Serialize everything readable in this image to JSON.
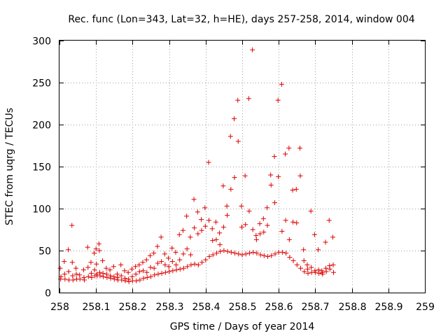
{
  "chart_data": {
    "type": "scatter",
    "title": "Rec. func (Lon=343, Lat=32, h=HE), days 257-258, 2014, window 004",
    "xlabel": "GPS time / Days of year 2014",
    "ylabel": "STEC from uqrg / TECUs",
    "xlim": [
      258,
      259
    ],
    "ylim": [
      0,
      300
    ],
    "x_ticks": [
      258,
      258.1,
      258.2,
      258.3,
      258.4,
      258.5,
      258.6,
      258.7,
      258.8,
      258.9,
      259
    ],
    "x_tick_labels": [
      "258",
      "258.1",
      "258.2",
      "258.3",
      "258.4",
      "258.5",
      "258.6",
      "258.7",
      "258.8",
      "258.9",
      "259"
    ],
    "y_ticks": [
      0,
      50,
      100,
      150,
      200,
      250,
      300
    ],
    "y_tick_labels": [
      "0",
      "50",
      "100",
      "150",
      "200",
      "250",
      "300"
    ],
    "grid": true,
    "marker": "plus",
    "color": "#dd0000",
    "series": [
      {
        "points": [
          [
            258.002,
            29
          ],
          [
            258.003,
            16
          ],
          [
            258.004,
            19
          ],
          [
            258.013,
            37
          ],
          [
            258.014,
            22
          ],
          [
            258.015,
            16
          ],
          [
            258.024,
            51
          ],
          [
            258.025,
            25
          ],
          [
            258.026,
            15
          ],
          [
            258.034,
            80
          ],
          [
            258.035,
            36
          ],
          [
            258.036,
            20
          ],
          [
            258.037,
            15
          ],
          [
            258.045,
            29
          ],
          [
            258.046,
            22
          ],
          [
            258.047,
            16
          ],
          [
            258.055,
            21
          ],
          [
            258.056,
            16
          ],
          [
            258.066,
            27
          ],
          [
            258.067,
            18
          ],
          [
            258.068,
            15
          ],
          [
            258.077,
            54
          ],
          [
            258.078,
            30
          ],
          [
            258.079,
            19
          ],
          [
            258.086,
            36
          ],
          [
            258.087,
            23
          ],
          [
            258.088,
            18
          ],
          [
            258.095,
            47
          ],
          [
            258.096,
            27
          ],
          [
            258.097,
            20
          ],
          [
            258.1,
            52
          ],
          [
            258.101,
            34
          ],
          [
            258.102,
            22
          ],
          [
            258.103,
            20
          ],
          [
            258.108,
            58
          ],
          [
            258.109,
            50
          ],
          [
            258.11,
            24
          ],
          [
            258.111,
            20
          ],
          [
            258.118,
            38
          ],
          [
            258.119,
            23
          ],
          [
            258.12,
            19
          ],
          [
            258.128,
            29
          ],
          [
            258.129,
            22
          ],
          [
            258.13,
            18
          ],
          [
            258.138,
            27
          ],
          [
            258.139,
            20
          ],
          [
            258.14,
            17
          ],
          [
            258.148,
            31
          ],
          [
            258.149,
            19
          ],
          [
            258.15,
            16
          ],
          [
            258.158,
            22
          ],
          [
            258.159,
            18
          ],
          [
            258.16,
            15
          ],
          [
            258.168,
            33
          ],
          [
            258.169,
            20
          ],
          [
            258.17,
            15
          ],
          [
            258.178,
            26
          ],
          [
            258.179,
            17
          ],
          [
            258.18,
            14
          ],
          [
            258.188,
            24
          ],
          [
            258.189,
            16
          ],
          [
            258.19,
            13
          ],
          [
            258.198,
            28
          ],
          [
            258.199,
            19
          ],
          [
            258.2,
            14
          ],
          [
            258.208,
            31
          ],
          [
            258.209,
            22
          ],
          [
            258.21,
            14
          ],
          [
            258.218,
            33
          ],
          [
            258.219,
            25
          ],
          [
            258.22,
            15
          ],
          [
            258.228,
            36
          ],
          [
            258.229,
            26
          ],
          [
            258.23,
            17
          ],
          [
            258.238,
            39
          ],
          [
            258.239,
            24
          ],
          [
            258.24,
            18
          ],
          [
            258.248,
            44
          ],
          [
            258.249,
            30
          ],
          [
            258.25,
            19
          ],
          [
            258.258,
            47
          ],
          [
            258.259,
            29
          ],
          [
            258.26,
            21
          ],
          [
            258.268,
            55
          ],
          [
            258.269,
            35
          ],
          [
            258.27,
            22
          ],
          [
            258.278,
            66
          ],
          [
            258.279,
            37
          ],
          [
            258.28,
            23
          ],
          [
            258.288,
            46
          ],
          [
            258.289,
            33
          ],
          [
            258.29,
            24
          ],
          [
            258.298,
            41
          ],
          [
            258.299,
            31
          ],
          [
            258.3,
            25
          ],
          [
            258.308,
            53
          ],
          [
            258.309,
            37
          ],
          [
            258.31,
            26
          ],
          [
            258.318,
            48
          ],
          [
            258.319,
            33
          ],
          [
            258.32,
            27
          ],
          [
            258.328,
            69
          ],
          [
            258.329,
            39
          ],
          [
            258.33,
            28
          ],
          [
            258.338,
            74
          ],
          [
            258.339,
            46
          ],
          [
            258.34,
            29
          ],
          [
            258.348,
            91
          ],
          [
            258.349,
            52
          ],
          [
            258.35,
            31
          ],
          [
            258.358,
            66
          ],
          [
            258.359,
            45
          ],
          [
            258.36,
            33
          ],
          [
            258.368,
            111
          ],
          [
            258.369,
            77
          ],
          [
            258.37,
            34
          ],
          [
            258.378,
            96
          ],
          [
            258.379,
            70
          ],
          [
            258.38,
            33
          ],
          [
            258.388,
            87
          ],
          [
            258.389,
            74
          ],
          [
            258.39,
            36
          ],
          [
            258.398,
            101
          ],
          [
            258.399,
            79
          ],
          [
            258.4,
            39
          ],
          [
            258.408,
            155
          ],
          [
            258.409,
            86
          ],
          [
            258.41,
            43
          ],
          [
            258.418,
            76
          ],
          [
            258.419,
            62
          ],
          [
            258.42,
            45
          ],
          [
            258.428,
            84
          ],
          [
            258.429,
            63
          ],
          [
            258.43,
            47
          ],
          [
            258.438,
            71
          ],
          [
            258.439,
            57
          ],
          [
            258.44,
            49
          ],
          [
            258.448,
            127
          ],
          [
            258.449,
            78
          ],
          [
            258.45,
            50
          ],
          [
            258.458,
            103
          ],
          [
            258.459,
            92
          ],
          [
            258.46,
            49
          ],
          [
            258.468,
            186
          ],
          [
            258.469,
            123
          ],
          [
            258.47,
            48
          ],
          [
            258.478,
            207
          ],
          [
            258.479,
            137
          ],
          [
            258.48,
            47
          ],
          [
            258.488,
            229
          ],
          [
            258.489,
            180
          ],
          [
            258.49,
            46
          ],
          [
            258.498,
            103
          ],
          [
            258.499,
            78
          ],
          [
            258.5,
            45
          ],
          [
            258.508,
            139
          ],
          [
            258.509,
            81
          ],
          [
            258.51,
            46
          ],
          [
            258.518,
            231
          ],
          [
            258.519,
            97
          ],
          [
            258.52,
            47
          ],
          [
            258.528,
            289
          ],
          [
            258.529,
            75
          ],
          [
            258.53,
            48
          ],
          [
            258.538,
            68
          ],
          [
            258.539,
            63
          ],
          [
            258.54,
            47
          ],
          [
            258.548,
            82
          ],
          [
            258.549,
            70
          ],
          [
            258.55,
            45
          ],
          [
            258.558,
            88
          ],
          [
            258.559,
            72
          ],
          [
            258.56,
            44
          ],
          [
            258.568,
            101
          ],
          [
            258.569,
            80
          ],
          [
            258.57,
            43
          ],
          [
            258.578,
            140
          ],
          [
            258.579,
            128
          ],
          [
            258.58,
            44
          ],
          [
            258.588,
            162
          ],
          [
            258.589,
            107
          ],
          [
            258.59,
            46
          ],
          [
            258.598,
            229
          ],
          [
            258.599,
            138
          ],
          [
            258.6,
            48
          ],
          [
            258.608,
            248
          ],
          [
            258.609,
            73
          ],
          [
            258.61,
            48
          ],
          [
            258.618,
            165
          ],
          [
            258.619,
            86
          ],
          [
            258.62,
            47
          ],
          [
            258.628,
            172
          ],
          [
            258.629,
            63
          ],
          [
            258.63,
            42
          ],
          [
            258.638,
            122
          ],
          [
            258.639,
            84
          ],
          [
            258.64,
            38
          ],
          [
            258.648,
            123
          ],
          [
            258.649,
            83
          ],
          [
            258.65,
            33
          ],
          [
            258.658,
            172
          ],
          [
            258.659,
            139
          ],
          [
            258.66,
            29
          ],
          [
            258.668,
            51
          ],
          [
            258.669,
            38
          ],
          [
            258.67,
            25
          ],
          [
            258.678,
            33
          ],
          [
            258.679,
            28
          ],
          [
            258.68,
            23
          ],
          [
            258.688,
            97
          ],
          [
            258.689,
            30
          ],
          [
            258.69,
            24
          ],
          [
            258.698,
            69
          ],
          [
            258.699,
            26
          ],
          [
            258.7,
            24
          ],
          [
            258.708,
            51
          ],
          [
            258.709,
            27
          ],
          [
            258.71,
            23
          ],
          [
            258.718,
            26
          ],
          [
            258.719,
            24
          ],
          [
            258.72,
            22
          ],
          [
            258.728,
            60
          ],
          [
            258.729,
            29
          ],
          [
            258.73,
            25
          ],
          [
            258.738,
            86
          ],
          [
            258.739,
            32
          ],
          [
            258.74,
            28
          ],
          [
            258.748,
            66
          ],
          [
            258.749,
            33
          ],
          [
            258.75,
            24
          ]
        ]
      }
    ]
  }
}
